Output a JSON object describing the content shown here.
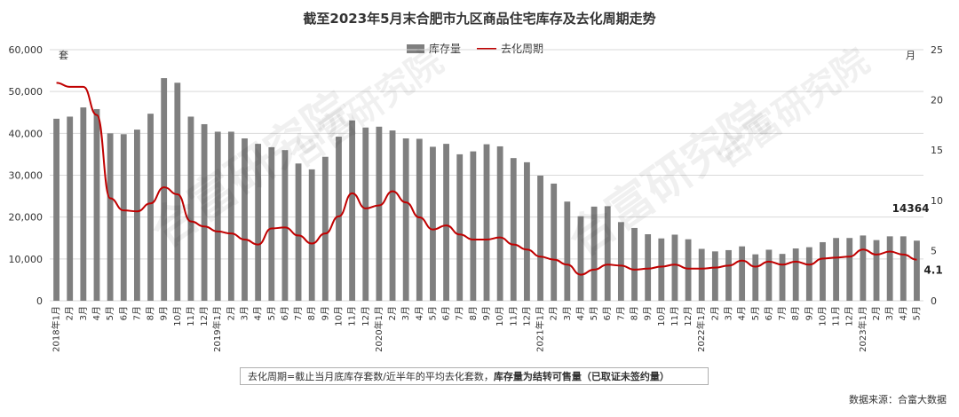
{
  "title": "截至2023年5月末合肥市九区商品住宅库存及去化周期走势",
  "legend": {
    "bar_label": "库存量",
    "line_label": "去化周期"
  },
  "units": {
    "left": "套",
    "right": "月"
  },
  "note": {
    "text": "去化周期=截止当月底库存套数/近半年的平均去化套数，",
    "bold": "库存量为结转可售量（已取证未签约量）"
  },
  "source": "数据来源：合富大数据",
  "watermark": "合富研究院",
  "colors": {
    "bar": "#7f7f7f",
    "line": "#c00000",
    "grid": "#d9d9d9"
  },
  "chart_data": {
    "type": "bar",
    "title": "截至2023年5月末合肥市九区商品住宅库存及去化周期走势",
    "x_labels": [
      "2018年1月",
      "2月",
      "3月",
      "4月",
      "5月",
      "6月",
      "7月",
      "8月",
      "9月",
      "10月",
      "11月",
      "12月",
      "2019年1月",
      "2月",
      "3月",
      "4月",
      "5月",
      "6月",
      "7月",
      "8月",
      "9月",
      "10月",
      "11月",
      "12月",
      "2020年1月",
      "2月",
      "3月",
      "4月",
      "5月",
      "6月",
      "7月",
      "8月",
      "9月",
      "10月",
      "11月",
      "12月",
      "2021年1月",
      "2月",
      "3月",
      "4月",
      "5月",
      "6月",
      "7月",
      "8月",
      "9月",
      "10月",
      "11月",
      "12月",
      "2022年1月",
      "2月",
      "3月",
      "4月",
      "5月",
      "6月",
      "7月",
      "8月",
      "9月",
      "10月",
      "11月",
      "12月",
      "2023年1月",
      "2月",
      "3月",
      "4月",
      "5月"
    ],
    "series": [
      {
        "name": "库存量",
        "axis": "left",
        "type": "bar",
        "values": [
          43500,
          44000,
          46200,
          45800,
          40000,
          39800,
          40900,
          44700,
          53200,
          52100,
          44000,
          42200,
          40400,
          40400,
          38800,
          37500,
          36700,
          36000,
          32800,
          31400,
          34400,
          39200,
          43100,
          41400,
          41600,
          40700,
          38800,
          38700,
          36800,
          37500,
          35000,
          35700,
          37400,
          36900,
          34100,
          33100,
          29900,
          28000,
          23700,
          20200,
          22500,
          22600,
          18800,
          17400,
          15900,
          14900,
          15800,
          14700,
          12400,
          11800,
          12100,
          13000,
          11100,
          12200,
          11200,
          12500,
          12800,
          14000,
          15000,
          15000,
          15600,
          14500,
          15400,
          15400,
          14364
        ]
      },
      {
        "name": "去化周期",
        "axis": "right",
        "type": "line",
        "values": [
          21.7,
          21.3,
          21.3,
          18.5,
          10.2,
          9.0,
          8.9,
          9.7,
          11.3,
          10.6,
          7.9,
          7.4,
          6.9,
          6.7,
          6.1,
          5.6,
          7.2,
          7.3,
          6.5,
          5.7,
          6.7,
          8.4,
          10.7,
          9.2,
          9.5,
          10.9,
          9.8,
          8.3,
          7.1,
          7.5,
          6.6,
          6.1,
          6.1,
          6.3,
          5.6,
          5.1,
          4.4,
          4.1,
          3.6,
          2.6,
          3.1,
          3.6,
          3.5,
          3.1,
          3.2,
          3.4,
          3.6,
          3.2,
          3.2,
          3.3,
          3.5,
          4.0,
          3.4,
          3.9,
          3.6,
          3.9,
          3.6,
          4.2,
          4.3,
          4.4,
          5.1,
          4.6,
          4.9,
          4.6,
          4.1
        ]
      }
    ],
    "y_left": {
      "min": 0,
      "max": 60000,
      "step": 10000,
      "ticks": [
        "0",
        "10,000",
        "20,000",
        "30,000",
        "40,000",
        "50,000",
        "60,000"
      ]
    },
    "y_right": {
      "min": 0,
      "max": 25,
      "step": 5,
      "ticks": [
        "0",
        "5",
        "10",
        "15",
        "20",
        "25"
      ]
    },
    "annotations": {
      "last_bar_label": "14364",
      "last_line_label": "4.1"
    },
    "grid": true,
    "legend_position": "top-center"
  }
}
